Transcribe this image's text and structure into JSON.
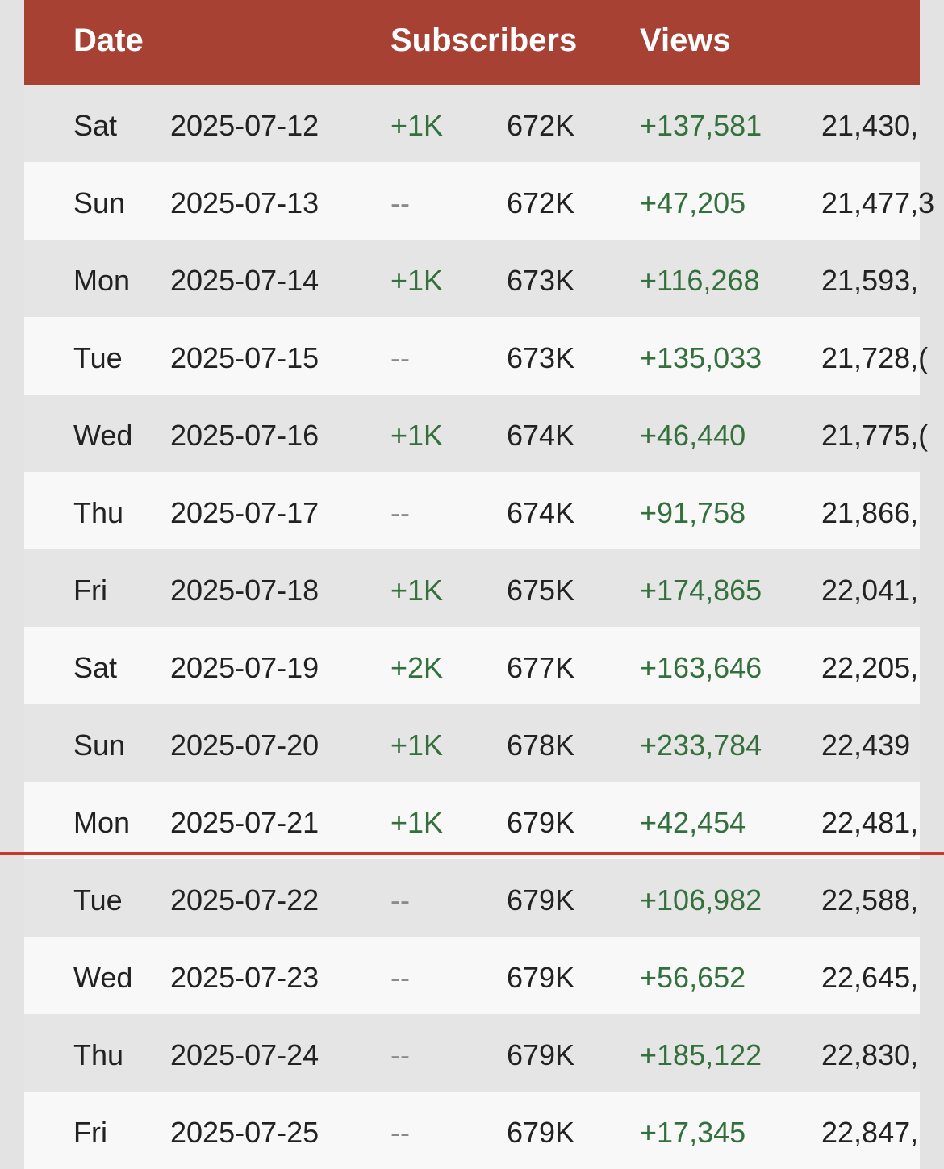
{
  "colors": {
    "header_bg": "#a64134",
    "gain_green": "#34703c",
    "divider_red": "#c8392c"
  },
  "header": {
    "date": "Date",
    "subscribers": "Subscribers",
    "views": "Views"
  },
  "rows": [
    {
      "day": "Sat",
      "date": "2025-07-12",
      "sub_change": "+1K",
      "subscribers": "672K",
      "view_change": "+137,581",
      "views": "21,430,"
    },
    {
      "day": "Sun",
      "date": "2025-07-13",
      "sub_change": "--",
      "subscribers": "672K",
      "view_change": "+47,205",
      "views": "21,477,3"
    },
    {
      "day": "Mon",
      "date": "2025-07-14",
      "sub_change": "+1K",
      "subscribers": "673K",
      "view_change": "+116,268",
      "views": "21,593,"
    },
    {
      "day": "Tue",
      "date": "2025-07-15",
      "sub_change": "--",
      "subscribers": "673K",
      "view_change": "+135,033",
      "views": "21,728,("
    },
    {
      "day": "Wed",
      "date": "2025-07-16",
      "sub_change": "+1K",
      "subscribers": "674K",
      "view_change": "+46,440",
      "views": "21,775,("
    },
    {
      "day": "Thu",
      "date": "2025-07-17",
      "sub_change": "--",
      "subscribers": "674K",
      "view_change": "+91,758",
      "views": "21,866,"
    },
    {
      "day": "Fri",
      "date": "2025-07-18",
      "sub_change": "+1K",
      "subscribers": "675K",
      "view_change": "+174,865",
      "views": "22,041,"
    },
    {
      "day": "Sat",
      "date": "2025-07-19",
      "sub_change": "+2K",
      "subscribers": "677K",
      "view_change": "+163,646",
      "views": "22,205,"
    },
    {
      "day": "Sun",
      "date": "2025-07-20",
      "sub_change": "+1K",
      "subscribers": "678K",
      "view_change": "+233,784",
      "views": "22,439"
    },
    {
      "day": "Mon",
      "date": "2025-07-21",
      "sub_change": "+1K",
      "subscribers": "679K",
      "view_change": "+42,454",
      "views": "22,481,"
    },
    {
      "day": "Tue",
      "date": "2025-07-22",
      "sub_change": "--",
      "subscribers": "679K",
      "view_change": "+106,982",
      "views": "22,588,"
    },
    {
      "day": "Wed",
      "date": "2025-07-23",
      "sub_change": "--",
      "subscribers": "679K",
      "view_change": "+56,652",
      "views": "22,645,"
    },
    {
      "day": "Thu",
      "date": "2025-07-24",
      "sub_change": "--",
      "subscribers": "679K",
      "view_change": "+185,122",
      "views": "22,830,"
    },
    {
      "day": "Fri",
      "date": "2025-07-25",
      "sub_change": "--",
      "subscribers": "679K",
      "view_change": "+17,345",
      "views": "22,847,"
    }
  ]
}
